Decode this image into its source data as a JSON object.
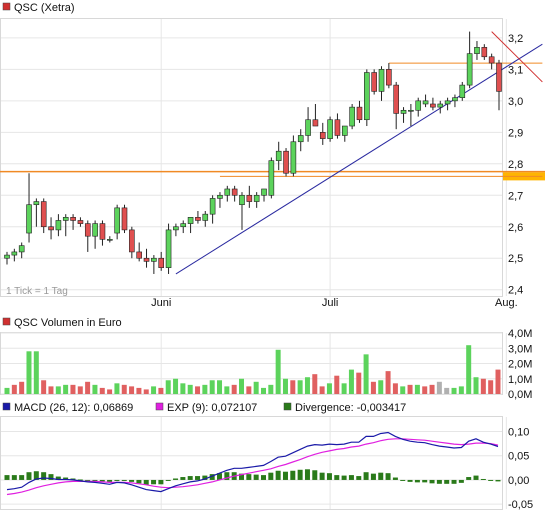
{
  "chart_data": [
    {
      "type": "candlestick",
      "title": "QSC (Xetra)",
      "title_color": "#d03030",
      "note": "1 Tick = 1 Tag",
      "ylim": [
        2.38,
        3.26
      ],
      "yticks": [
        "3,2",
        "3,1",
        "3,0",
        "2,9",
        "2,8",
        "2,7",
        "2,6",
        "2,5",
        "2,4"
      ],
      "ytick_values": [
        3.2,
        3.1,
        3.0,
        2.9,
        2.8,
        2.7,
        2.6,
        2.5,
        2.4
      ],
      "xticks": [
        {
          "label": "Juni",
          "index": 21
        },
        {
          "label": "Juli",
          "index": 44
        },
        {
          "label": "Aug.",
          "index": 68
        }
      ],
      "candles": [
        [
          2.5,
          2.52,
          2.48,
          2.51
        ],
        [
          2.51,
          2.53,
          2.49,
          2.52
        ],
        [
          2.52,
          2.55,
          2.5,
          2.54
        ],
        [
          2.58,
          2.77,
          2.55,
          2.67
        ],
        [
          2.67,
          2.69,
          2.6,
          2.68
        ],
        [
          2.68,
          2.69,
          2.58,
          2.6
        ],
        [
          2.6,
          2.63,
          2.56,
          2.59
        ],
        [
          2.59,
          2.64,
          2.57,
          2.62
        ],
        [
          2.62,
          2.64,
          2.57,
          2.63
        ],
        [
          2.63,
          2.64,
          2.59,
          2.62
        ],
        [
          2.62,
          2.63,
          2.6,
          2.61
        ],
        [
          2.61,
          2.62,
          2.52,
          2.57
        ],
        [
          2.57,
          2.62,
          2.53,
          2.61
        ],
        [
          2.61,
          2.62,
          2.54,
          2.56
        ],
        [
          2.56,
          2.57,
          2.55,
          2.56
        ],
        [
          2.58,
          2.67,
          2.56,
          2.66
        ],
        [
          2.66,
          2.67,
          2.58,
          2.59
        ],
        [
          2.59,
          2.6,
          2.5,
          2.52
        ],
        [
          2.52,
          2.55,
          2.49,
          2.5
        ],
        [
          2.5,
          2.53,
          2.47,
          2.49
        ],
        [
          2.49,
          2.51,
          2.45,
          2.5
        ],
        [
          2.5,
          2.52,
          2.46,
          2.47
        ],
        [
          2.47,
          2.61,
          2.45,
          2.59
        ],
        [
          2.59,
          2.61,
          2.57,
          2.6
        ],
        [
          2.6,
          2.62,
          2.58,
          2.61
        ],
        [
          2.61,
          2.63,
          2.58,
          2.63
        ],
        [
          2.63,
          2.65,
          2.61,
          2.62
        ],
        [
          2.62,
          2.65,
          2.6,
          2.64
        ],
        [
          2.64,
          2.7,
          2.61,
          2.69
        ],
        [
          2.69,
          2.71,
          2.66,
          2.7
        ],
        [
          2.7,
          2.73,
          2.68,
          2.72
        ],
        [
          2.72,
          2.73,
          2.68,
          2.7
        ],
        [
          2.67,
          2.71,
          2.59,
          2.7
        ],
        [
          2.7,
          2.73,
          2.66,
          2.68
        ],
        [
          2.68,
          2.71,
          2.66,
          2.7
        ],
        [
          2.7,
          2.72,
          2.68,
          2.72
        ],
        [
          2.7,
          2.82,
          2.69,
          2.81
        ],
        [
          2.81,
          2.87,
          2.78,
          2.84
        ],
        [
          2.84,
          2.85,
          2.76,
          2.77
        ],
        [
          2.77,
          2.89,
          2.76,
          2.87
        ],
        [
          2.87,
          2.91,
          2.84,
          2.89
        ],
        [
          2.89,
          2.98,
          2.87,
          2.94
        ],
        [
          2.94,
          2.99,
          2.92,
          2.92
        ],
        [
          2.9,
          2.93,
          2.86,
          2.88
        ],
        [
          2.88,
          2.95,
          2.87,
          2.94
        ],
        [
          2.94,
          2.96,
          2.88,
          2.89
        ],
        [
          2.89,
          2.92,
          2.87,
          2.92
        ],
        [
          2.92,
          2.99,
          2.91,
          2.98
        ],
        [
          2.98,
          3.0,
          2.93,
          2.94
        ],
        [
          2.94,
          3.1,
          2.92,
          3.09
        ],
        [
          3.09,
          3.1,
          3.02,
          3.03
        ],
        [
          3.03,
          3.11,
          3.0,
          3.1
        ],
        [
          3.1,
          3.12,
          3.04,
          3.05
        ],
        [
          3.05,
          3.06,
          2.91,
          2.96
        ],
        [
          2.96,
          2.98,
          2.93,
          2.97
        ],
        [
          2.97,
          2.99,
          2.92,
          2.97
        ],
        [
          2.97,
          3.01,
          2.95,
          3.0
        ],
        [
          2.99,
          3.02,
          2.98,
          3.0
        ],
        [
          2.99,
          3.01,
          2.97,
          2.98
        ],
        [
          2.98,
          3.0,
          2.96,
          2.99
        ],
        [
          2.99,
          3.01,
          2.97,
          3.0
        ],
        [
          3.0,
          3.02,
          2.98,
          3.01
        ],
        [
          3.01,
          3.06,
          3.0,
          3.05
        ],
        [
          3.05,
          3.22,
          3.04,
          3.15
        ],
        [
          3.15,
          3.19,
          3.13,
          3.17
        ],
        [
          3.17,
          3.18,
          3.13,
          3.14
        ],
        [
          3.14,
          3.15,
          3.1,
          3.12
        ],
        [
          3.12,
          3.13,
          2.97,
          3.03
        ]
      ],
      "lines": [
        {
          "name": "resistance",
          "color": "#f08a24",
          "x": [
            52,
            71
          ],
          "y": [
            3.12,
            3.12
          ]
        },
        {
          "name": "support",
          "color": "#f08a24",
          "x": [
            29,
            71
          ],
          "y": [
            2.76,
            2.76
          ]
        },
        {
          "name": "uptrend",
          "color": "#2a2aa0",
          "x": [
            23,
            71
          ],
          "y": [
            2.45,
            3.1
          ]
        },
        {
          "name": "downtrend",
          "color": "#d03030",
          "x": [
            66,
            71
          ],
          "y": [
            3.22,
            3.1
          ]
        }
      ],
      "hline": {
        "color": "#f08a24",
        "y": 2.775
      },
      "last_value_marker": {
        "color": "#ffb400",
        "y": 2.76
      }
    },
    {
      "type": "bar",
      "title": "QSC Volumen in Euro",
      "title_color": "#d03030",
      "ylim": [
        0,
        4.0
      ],
      "yticks": [
        "4,0M",
        "3,0M",
        "2,0M",
        "1,0M",
        "0,0M"
      ],
      "ytick_values": [
        4.0,
        3.0,
        2.0,
        1.0,
        0.0
      ],
      "values": [
        0.4,
        0.6,
        0.8,
        2.8,
        2.8,
        0.9,
        0.5,
        0.5,
        0.6,
        0.6,
        0.5,
        0.8,
        0.6,
        0.4,
        0.3,
        0.7,
        0.6,
        0.5,
        0.4,
        0.3,
        0.5,
        0.4,
        0.9,
        1.0,
        0.7,
        0.6,
        0.5,
        0.6,
        0.9,
        0.9,
        0.5,
        0.6,
        1.0,
        0.5,
        0.8,
        0.4,
        0.6,
        2.9,
        1.0,
        0.9,
        0.9,
        1.1,
        1.3,
        0.5,
        0.7,
        1.2,
        0.7,
        1.6,
        1.4,
        2.6,
        0.8,
        0.9,
        1.5,
        0.7,
        0.5,
        0.6,
        0.6,
        0.5,
        0.6,
        0.8,
        0.4,
        0.4,
        0.5,
        3.2,
        1.1,
        1.0,
        0.9,
        1.6
      ],
      "colors": [
        "#5cd35c",
        "#e06060",
        "#e06060",
        "#5cd35c",
        "#5cd35c",
        "#e06060",
        "#e06060",
        "#5cd35c",
        "#5cd35c",
        "#e06060",
        "#e06060",
        "#e06060",
        "#5cd35c",
        "#e06060",
        "#e06060",
        "#5cd35c",
        "#e06060",
        "#e06060",
        "#e06060",
        "#e06060",
        "#5cd35c",
        "#e06060",
        "#5cd35c",
        "#5cd35c",
        "#5cd35c",
        "#5cd35c",
        "#e06060",
        "#5cd35c",
        "#5cd35c",
        "#5cd35c",
        "#5cd35c",
        "#e06060",
        "#5cd35c",
        "#e06060",
        "#5cd35c",
        "#5cd35c",
        "#5cd35c",
        "#5cd35c",
        "#5cd35c",
        "#e06060",
        "#5cd35c",
        "#5cd35c",
        "#e06060",
        "#e06060",
        "#5cd35c",
        "#e06060",
        "#5cd35c",
        "#5cd35c",
        "#e06060",
        "#5cd35c",
        "#e06060",
        "#5cd35c",
        "#e06060",
        "#e06060",
        "#5cd35c",
        "#e06060",
        "#5cd35c",
        "#e06060",
        "#e06060",
        "#b0b0b0",
        "#b0b0b0",
        "#5cd35c",
        "#5cd35c",
        "#5cd35c",
        "#5cd35c",
        "#e06060",
        "#e06060",
        "#e06060"
      ]
    },
    {
      "type": "line",
      "ylim": [
        -0.06,
        0.13
      ],
      "yticks": [
        "0,10",
        "0,05",
        "0,00",
        "-0,05"
      ],
      "ytick_values": [
        0.1,
        0.05,
        0.0,
        -0.05
      ],
      "legend": [
        {
          "label": "MACD (26, 12): 0,06869",
          "color": "#1a1aa8"
        },
        {
          "label": "EXP (9): 0,072107",
          "color": "#e020e0"
        },
        {
          "label": "Divergence: -0,003417",
          "color": "#2a7a1a"
        }
      ],
      "series": [
        {
          "name": "MACD (26, 12)",
          "color": "#1a1aa8",
          "values": [
            -0.02,
            -0.018,
            -0.015,
            -0.005,
            0.002,
            0.004,
            0.003,
            0.001,
            0.001,
            0.0,
            -0.002,
            -0.004,
            -0.005,
            -0.007,
            -0.009,
            -0.005,
            -0.006,
            -0.01,
            -0.015,
            -0.02,
            -0.022,
            -0.024,
            -0.018,
            -0.012,
            -0.008,
            -0.004,
            -0.002,
            0.002,
            0.008,
            0.014,
            0.02,
            0.024,
            0.024,
            0.026,
            0.028,
            0.03,
            0.038,
            0.047,
            0.049,
            0.056,
            0.063,
            0.07,
            0.073,
            0.072,
            0.074,
            0.073,
            0.074,
            0.078,
            0.078,
            0.09,
            0.09,
            0.096,
            0.098,
            0.09,
            0.084,
            0.08,
            0.078,
            0.077,
            0.073,
            0.07,
            0.068,
            0.066,
            0.067,
            0.08,
            0.085,
            0.078,
            0.074,
            0.069
          ]
        },
        {
          "name": "EXP (9)",
          "color": "#e020e0",
          "values": [
            -0.03,
            -0.028,
            -0.025,
            -0.021,
            -0.016,
            -0.012,
            -0.009,
            -0.006,
            -0.004,
            -0.003,
            -0.003,
            -0.003,
            -0.003,
            -0.004,
            -0.005,
            -0.005,
            -0.005,
            -0.006,
            -0.008,
            -0.01,
            -0.013,
            -0.015,
            -0.016,
            -0.015,
            -0.014,
            -0.012,
            -0.01,
            -0.007,
            -0.004,
            0.0,
            0.004,
            0.008,
            0.011,
            0.014,
            0.017,
            0.02,
            0.023,
            0.028,
            0.032,
            0.037,
            0.042,
            0.048,
            0.053,
            0.057,
            0.06,
            0.063,
            0.065,
            0.068,
            0.07,
            0.074,
            0.077,
            0.081,
            0.084,
            0.085,
            0.085,
            0.084,
            0.083,
            0.082,
            0.08,
            0.078,
            0.076,
            0.074,
            0.073,
            0.074,
            0.076,
            0.076,
            0.075,
            0.072
          ]
        },
        {
          "name": "Divergence",
          "color": "#2a7a1a",
          "type": "bar",
          "values": [
            0.01,
            0.01,
            0.01,
            0.016,
            0.018,
            0.016,
            0.012,
            0.007,
            0.005,
            0.003,
            0.001,
            -0.001,
            -0.002,
            -0.003,
            -0.004,
            0.0,
            -0.001,
            -0.004,
            -0.007,
            -0.01,
            -0.009,
            -0.009,
            -0.002,
            0.003,
            0.006,
            0.008,
            0.008,
            0.009,
            0.012,
            0.014,
            0.016,
            0.016,
            0.013,
            0.012,
            0.011,
            0.01,
            0.015,
            0.019,
            0.017,
            0.019,
            0.021,
            0.022,
            0.02,
            0.015,
            0.014,
            0.01,
            0.009,
            0.01,
            0.008,
            0.016,
            0.013,
            0.015,
            0.014,
            0.005,
            -0.001,
            -0.004,
            -0.005,
            -0.005,
            -0.007,
            -0.008,
            -0.008,
            -0.008,
            -0.006,
            0.006,
            0.009,
            0.002,
            -0.001,
            -0.003
          ]
        }
      ]
    }
  ]
}
